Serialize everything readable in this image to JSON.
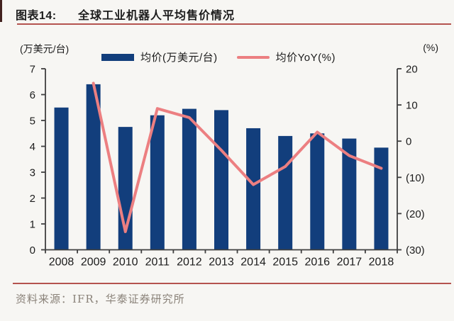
{
  "header": {
    "label": "图表14:",
    "title": "全球工业机器人平均售价情况"
  },
  "footer": {
    "source": "资料来源：IFR，华泰证券研究所"
  },
  "colors": {
    "background": "#f7f6f3",
    "bar": "#123e7c",
    "line": "#ec7f81",
    "rule": "#b4534f",
    "axis": "#3f3f3f",
    "text": "#1c1c1c",
    "muted": "#8a8279",
    "accent_strip": "#42221f"
  },
  "chart_data": {
    "type": "bar",
    "subtype": "bar+line combo, dual axis",
    "title": "全球工业机器人平均售价情况",
    "categories": [
      "2008",
      "2009",
      "2010",
      "2011",
      "2012",
      "2013",
      "2014",
      "2015",
      "2016",
      "2017",
      "2018"
    ],
    "series": [
      {
        "name": "均价(万美元/台)",
        "type": "bar",
        "axis": "left",
        "values": [
          5.5,
          6.4,
          4.75,
          5.2,
          5.45,
          5.4,
          4.7,
          4.4,
          4.5,
          4.3,
          3.95
        ]
      },
      {
        "name": "均价YoY(%)",
        "type": "line",
        "axis": "right",
        "values": [
          null,
          16,
          -25,
          9,
          6.5,
          -2.5,
          -12,
          -7,
          2.5,
          -4,
          -7.5
        ]
      }
    ],
    "left_axis": {
      "label": "(万美元/台)",
      "min": 0,
      "max": 7,
      "ticks": [
        7,
        6,
        5,
        4,
        3,
        2,
        1,
        0
      ]
    },
    "right_axis": {
      "label": "(%)",
      "min": -30,
      "max": 20,
      "ticks": [
        20,
        10,
        0,
        -10,
        -20,
        -30
      ],
      "tick_labels": [
        "20",
        "10",
        "0",
        "(10)",
        "(20)",
        "(30)"
      ]
    },
    "legend": [
      {
        "label": "均价(万美元/台)",
        "swatch": "bar"
      },
      {
        "label": "均价YoY(%)",
        "swatch": "line"
      }
    ],
    "grid": "off",
    "legend_position": "top-center"
  }
}
